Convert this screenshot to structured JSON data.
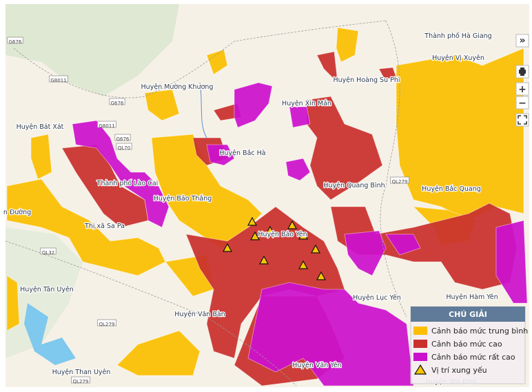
{
  "map": {
    "places": [
      {
        "label": "Thành phố Hà Giang"
      },
      {
        "label": "Huyện Vị Xuyên"
      },
      {
        "label": "Huyện Hoàng Su Phì"
      },
      {
        "label": "Huyện Mường Khương"
      },
      {
        "label": "Huyện Xín Mần"
      },
      {
        "label": "Huyện Bát Xát"
      },
      {
        "label": "Huyện Bắc Hà"
      },
      {
        "label": "Huyện Quang Bình"
      },
      {
        "label": "Huyện Bắc Quang"
      },
      {
        "label": "Thành phố Lào Cai"
      },
      {
        "label": "Huyện Bảo Thắng"
      },
      {
        "label": "Thị xã Sa Pa"
      },
      {
        "label": "Huyện Bảo Yên"
      },
      {
        "label": "Huyện Tân Uyên"
      },
      {
        "label": "Huyện Lục Yên"
      },
      {
        "label": "Huyện Hàm Yên"
      },
      {
        "label": "Huyện Văn Bàn"
      },
      {
        "label": "Huyện Văn Yên"
      },
      {
        "label": "Huyện Than Uyên"
      },
      {
        "label": "Huyện Yên Bình"
      },
      {
        "label": "n Đường"
      }
    ],
    "roads": [
      {
        "label": "G676"
      },
      {
        "label": "G8011"
      },
      {
        "label": "G676"
      },
      {
        "label": "G8011"
      },
      {
        "label": "G676"
      },
      {
        "label": "QL70"
      },
      {
        "label": "QL279"
      },
      {
        "label": "QL32"
      },
      {
        "label": "QL279"
      },
      {
        "label": "QL279"
      }
    ]
  },
  "legend": {
    "title": "CHÚ GIẢI",
    "items": [
      {
        "label": "Cảnh báo mức trung bình",
        "color": "#fbbf00"
      },
      {
        "label": "Cảnh báo mức cao",
        "color": "#c9302c"
      },
      {
        "label": "Cảnh báo mức rất cao",
        "color": "#cc11cc"
      },
      {
        "label": "Vị trí xung yếu"
      }
    ]
  },
  "controls": {
    "expand": "»",
    "zoom_in": "+",
    "zoom_out": "−"
  }
}
